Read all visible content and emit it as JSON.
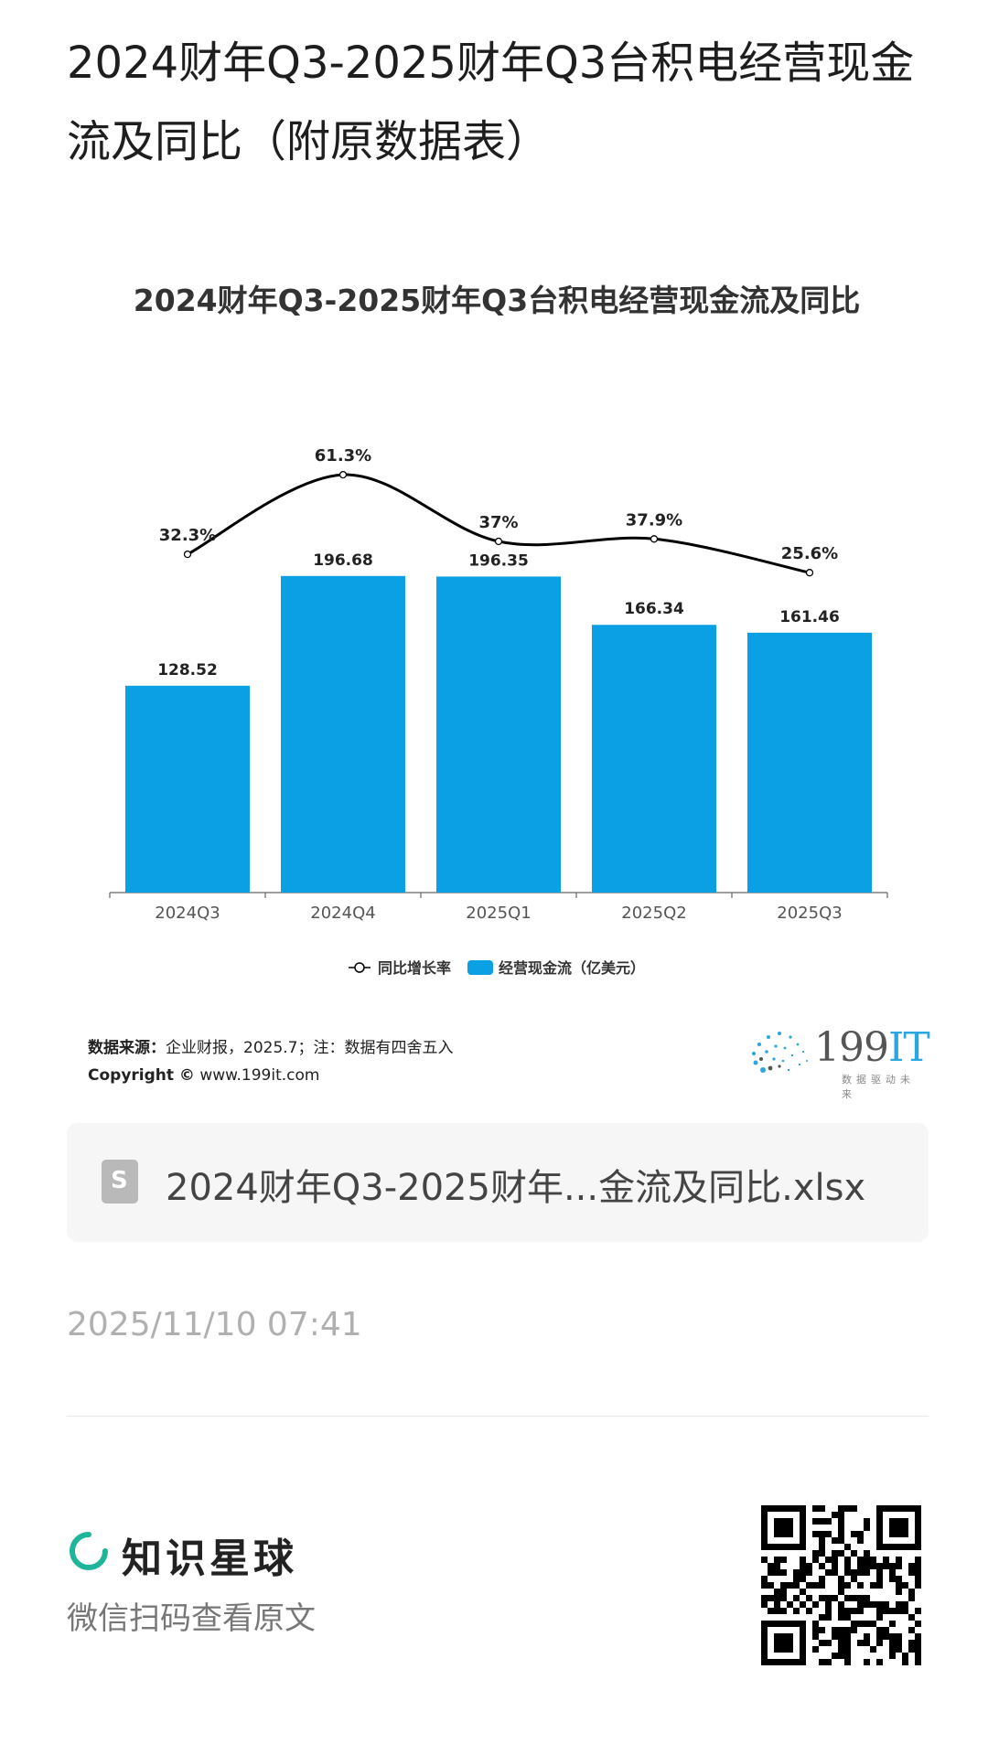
{
  "page": {
    "title": "2024财年Q3-2025财年Q3台积电经营现金流及同比（附原数据表）"
  },
  "chart_data": {
    "type": "bar",
    "title": "2024财年Q3-2025财年Q3台积电经营现金流及同比",
    "categories": [
      "2024Q3",
      "2024Q4",
      "2025Q1",
      "2025Q2",
      "2025Q3"
    ],
    "series": [
      {
        "name": "经营现金流（亿美元）",
        "type": "bar",
        "values": [
          128.52,
          196.68,
          196.35,
          166.34,
          161.46
        ],
        "color": "#0ba0e3"
      },
      {
        "name": "同比增长率",
        "type": "line",
        "values": [
          32.3,
          61.3,
          37,
          37.9,
          25.6
        ],
        "labels": [
          "32.3%",
          "61.3%",
          "37%",
          "37.9%",
          "25.6%"
        ],
        "color": "#000000"
      }
    ],
    "bar_labels": [
      "128.52",
      "196.68",
      "196.35",
      "166.34",
      "161.46"
    ],
    "legend_position": "bottom"
  },
  "source": {
    "label": "数据来源：",
    "text": "企业财报，2025.7；注：数据有四舍五入",
    "copyright_label": "Copyright ©",
    "copyright_text": "www.199it.com"
  },
  "logo": {
    "main": "199",
    "accent": "IT",
    "tagline": "数据驱动未来"
  },
  "file": {
    "icon": "spreadsheet-file-icon",
    "icon_letter": "S",
    "name": "2024财年Q3-2025财年...金流及同比.xlsx"
  },
  "timestamp": "2025/11/10 07:41",
  "footer": {
    "brand_icon": "zhishixingqiu-logo-icon",
    "brand_name": "知识星球",
    "scan_text": "微信扫码查看原文",
    "qr_icon": "qr-code-icon"
  }
}
